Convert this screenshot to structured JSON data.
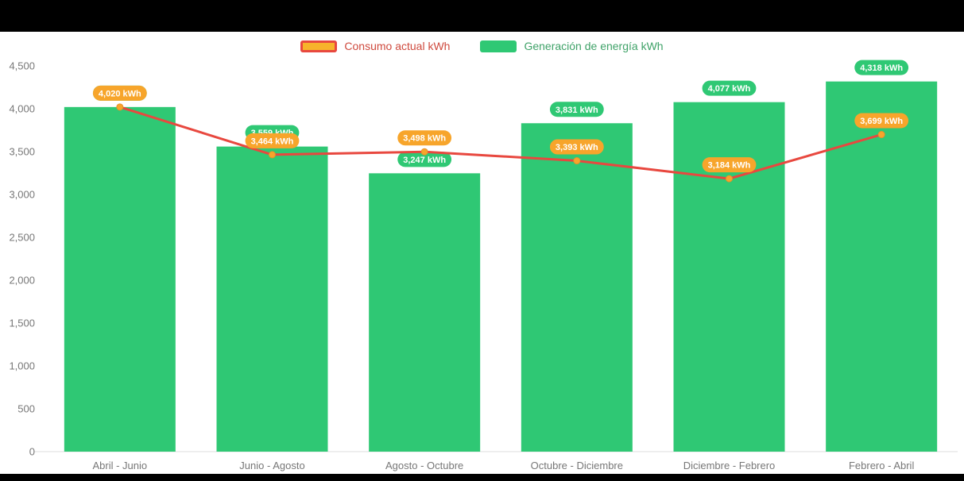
{
  "page": {
    "background_color": "#000000",
    "panel_color": "#ffffff"
  },
  "legend": {
    "items": [
      {
        "label": "Consumo actual kWh",
        "type": "line",
        "swatch_fill": "#F7B32B",
        "swatch_border": "#E8483F",
        "text_color": "#CF4A3E"
      },
      {
        "label": "Generación de energía kWh",
        "type": "bar",
        "swatch_fill": "#2FC874",
        "swatch_border": "#2FC874",
        "text_color": "#3FA268"
      }
    ]
  },
  "chart_data": {
    "type": "combo",
    "categories": [
      "Abril - Junio",
      "Junio - Agosto",
      "Agosto - Octubre",
      "Octubre - Diciembre",
      "Diciembre - Febrero",
      "Febrero - Abril"
    ],
    "series": [
      {
        "name": "Generación de energía kWh",
        "type": "bar",
        "color": "#2FC874",
        "label_pill_color": "#2FC874",
        "values": [
          4020,
          3559,
          3247,
          3831,
          4077,
          4318
        ],
        "labels": [
          "4,020 kWh",
          "3,559 kWh",
          "3,247 kWh",
          "3,831 kWh",
          "4,077 kWh",
          "4,318 kWh"
        ]
      },
      {
        "name": "Consumo actual kWh",
        "type": "line",
        "color": "#E8483F",
        "marker_color": "#F7A52B",
        "label_pill_color": "#F7A52B",
        "values": [
          4020,
          3464,
          3498,
          3393,
          3184,
          3699
        ],
        "labels": [
          "4,020 kWh",
          "3,464 kWh",
          "3,498 kWh",
          "3,393 kWh",
          "3,184 kWh",
          "3,699 kWh"
        ]
      }
    ],
    "ylim": [
      0,
      4500
    ],
    "y_ticks": [
      "0",
      "500",
      "1,000",
      "1,500",
      "2,000",
      "2,500",
      "3,000",
      "3,500",
      "4,000",
      "4,500"
    ],
    "grid": false,
    "legend_position": "top",
    "axis_text_color": "#777777"
  }
}
